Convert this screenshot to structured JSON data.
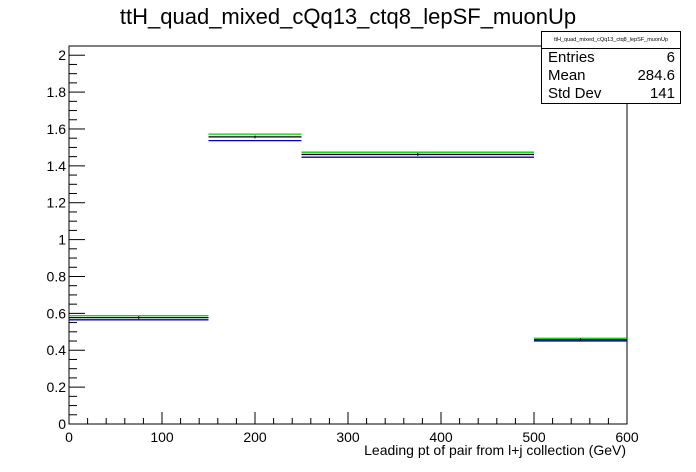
{
  "chart_data": {
    "type": "histogram",
    "title": "ttH_quad_mixed_cQq13_ctq8_lepSF_muonUp",
    "xlabel": "Leading pt of pair from l+j collection (GeV)",
    "ylabel": "",
    "xlim": [
      0,
      600
    ],
    "ylim": [
      0,
      2.05
    ],
    "x_ticks": [
      0,
      100,
      200,
      300,
      400,
      500,
      600
    ],
    "y_ticks": [
      0,
      0.2,
      0.4,
      0.6,
      0.8,
      1,
      1.2,
      1.4,
      1.6,
      1.8,
      2
    ],
    "bin_edges": [
      0,
      150,
      250,
      500,
      600
    ],
    "series": [
      {
        "color": "#000000",
        "values": [
          0.577,
          1.557,
          1.462,
          0.457
        ]
      },
      {
        "color": "#00cc00",
        "values": [
          0.587,
          1.572,
          1.474,
          0.465
        ]
      },
      {
        "color": "#0000cc",
        "values": [
          0.565,
          1.537,
          1.447,
          0.45
        ]
      }
    ],
    "stats": {
      "title": "ttH_quad_mixed_cQq13_ctq8_lepSF_muonUp",
      "entries_label": "Entries",
      "entries": "6",
      "mean_label": "Mean",
      "mean": "284.6",
      "stddev_label": "Std Dev",
      "stddev": "141"
    }
  }
}
